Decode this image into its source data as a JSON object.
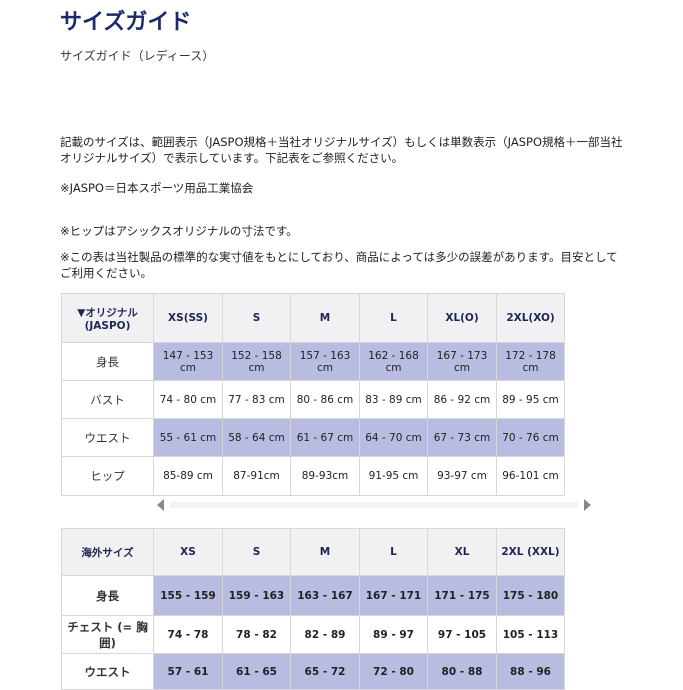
{
  "header": {
    "title": "サイズガイド",
    "subtitle": "サイズガイド（レディース）"
  },
  "notes": [
    [
      "記載のサイズは、範囲表示（JASPO規格＋当社オリジナルサイズ）もしくは単数表示（JASPO規格＋一部当社",
      "オリジナルサイズ）で表示しています。下記表をご参照ください。"
    ],
    [
      "※JASPO＝日本スポーツ用品工業協会"
    ],
    [
      "※ヒップはアシックスオリジナルの寸法です。"
    ],
    [
      "※この表は当社製品の標準的な実寸値をもとにしており、商品によっては多少の誤差があります。目安として",
      "ご利用ください。"
    ]
  ],
  "tables": [
    {
      "header": [
        "▼オリジナル (JASPO)",
        "XS(SS)",
        "S",
        "M",
        "L",
        "XL(O)",
        "2XL(XO)"
      ],
      "rows": [
        [
          "身長",
          "147 - 153 cm",
          "152 - 158 cm",
          "157 - 163 cm",
          "162 - 168 cm",
          "167 - 173 cm",
          "172 - 178 cm"
        ],
        [
          "バスト",
          "74 - 80 cm",
          "77 - 83 cm",
          "80 - 86 cm",
          "83 - 89 cm",
          "86 - 92 cm",
          "89 - 95 cm"
        ],
        [
          "ウエスト",
          "55 - 61 cm",
          "58 - 64 cm",
          "61 - 67 cm",
          "64 - 70 cm",
          "67 - 73 cm",
          "70 - 76 cm"
        ],
        [
          "ヒップ",
          "85-89 cm",
          "87-91cm",
          "89-93cm",
          "91-95 cm",
          "93-97 cm",
          "96-101 cm"
        ]
      ]
    },
    {
      "header": [
        "海外サイズ",
        "XS",
        "S",
        "M",
        "L",
        "XL",
        "2XL (XXL)"
      ],
      "rows": [
        [
          "身長",
          "155 - 159",
          "159 - 163",
          "163 - 167",
          "167 - 171",
          "171 - 175",
          "175 - 180"
        ],
        [
          "チェスト (= 胸囲)",
          "74 - 78",
          "78 - 82",
          "82 - 89",
          "89 - 97",
          "97 - 105",
          "105 - 113"
        ],
        [
          "ウエスト",
          "57 - 61",
          "61 - 65",
          "65 - 72",
          "72 - 80",
          "80 - 88",
          "88 - 96"
        ]
      ]
    }
  ]
}
